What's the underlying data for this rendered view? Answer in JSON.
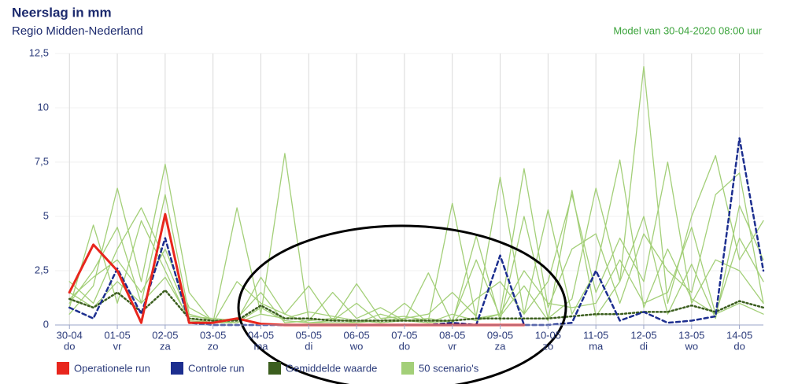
{
  "chart_data": {
    "type": "line",
    "title": "Neerslag in mm",
    "subtitle": "Regio Midden-Nederland",
    "model_note": "Model van 30-04-2020 08:00 uur",
    "x": [
      0,
      0.5,
      1,
      1.5,
      2,
      2.5,
      3,
      3.5,
      4,
      4.5,
      5,
      5.5,
      6,
      6.5,
      7,
      7.5,
      8,
      8.5,
      9,
      9.5,
      10,
      10.5,
      11,
      11.5,
      12,
      12.5,
      13,
      13.5,
      14,
      14.5
    ],
    "xlim": [
      -0.3,
      14.5
    ],
    "xticks": [
      {
        "value": 0,
        "label": "30-04",
        "day": "do"
      },
      {
        "value": 1,
        "label": "01-05",
        "day": "vr"
      },
      {
        "value": 2,
        "label": "02-05",
        "day": "za"
      },
      {
        "value": 3,
        "label": "03-05",
        "day": "zo"
      },
      {
        "value": 4,
        "label": "04-05",
        "day": "ma"
      },
      {
        "value": 5,
        "label": "05-05",
        "day": "di"
      },
      {
        "value": 6,
        "label": "06-05",
        "day": "wo"
      },
      {
        "value": 7,
        "label": "07-05",
        "day": "do"
      },
      {
        "value": 8,
        "label": "08-05",
        "day": "vr"
      },
      {
        "value": 9,
        "label": "09-05",
        "day": "za"
      },
      {
        "value": 10,
        "label": "10-05",
        "day": "zo"
      },
      {
        "value": 11,
        "label": "11-05",
        "day": "ma"
      },
      {
        "value": 12,
        "label": "12-05",
        "day": "di"
      },
      {
        "value": 13,
        "label": "13-05",
        "day": "wo"
      },
      {
        "value": 14,
        "label": "14-05",
        "day": "do"
      }
    ],
    "ylim": [
      0,
      12.5
    ],
    "yticks": [
      0,
      {
        "value": 2.5,
        "label": "2,5"
      },
      5,
      {
        "value": 7.5,
        "label": "7,5"
      },
      10,
      {
        "value": 12.5,
        "label": "12,5"
      }
    ],
    "grid": true,
    "series": [
      {
        "name": "Operationele run",
        "color": "#e8261d",
        "style": "solid",
        "values": [
          1.5,
          3.7,
          2.5,
          0.1,
          5.1,
          0.1,
          0.1,
          0.3,
          0.05,
          0,
          0,
          0,
          0,
          0,
          0,
          0,
          0,
          0,
          0,
          0,
          null,
          null,
          null,
          null,
          null,
          null,
          null,
          null,
          null,
          null
        ]
      },
      {
        "name": "Controle run",
        "color": "#1c2e8f",
        "style": "dashed",
        "values": [
          0.8,
          0.3,
          2.6,
          0.5,
          4.0,
          0.1,
          0,
          0,
          0,
          0,
          0,
          0,
          0,
          0,
          0,
          0,
          0.1,
          0,
          3.2,
          0,
          0,
          0.1,
          2.5,
          0.2,
          0.6,
          0.1,
          0.2,
          0.4,
          8.6,
          2.5
        ]
      },
      {
        "name": "Gemiddelde waarde",
        "color": "#3b5e1e",
        "style": "dotted",
        "values": [
          1.2,
          0.8,
          1.5,
          0.6,
          1.6,
          0.3,
          0.2,
          0.2,
          0.9,
          0.3,
          0.3,
          0.2,
          0.2,
          0.2,
          0.2,
          0.2,
          0.2,
          0.3,
          0.3,
          0.3,
          0.3,
          0.4,
          0.5,
          0.5,
          0.6,
          0.6,
          0.9,
          0.6,
          1.1,
          0.8
        ]
      },
      {
        "name": "50 scenario's",
        "color": "#a3cf78",
        "style": "solid",
        "members": [
          [
            1.0,
            2.5,
            4.5,
            1.0,
            6.0,
            0.5,
            0.2,
            0.1,
            0.8,
            0.2,
            0.1,
            0.1,
            0.1,
            0.2,
            0.3,
            0.5,
            1.5,
            0.4,
            6.8,
            0.5,
            2.0,
            6.0,
            1.5,
            4.0,
            2.0,
            7.5,
            1.0,
            3.0,
            2.5,
            1.0
          ],
          [
            0.5,
            1.8,
            6.3,
            2.0,
            7.4,
            1.5,
            0.1,
            5.4,
            0.5,
            7.9,
            0.2,
            1.5,
            0.3,
            0.8,
            0.2,
            2.4,
            0.1,
            4.1,
            0.2,
            5.0,
            0.3,
            1.2,
            6.3,
            2.0,
            11.9,
            1.0,
            5.0,
            7.8,
            3.0,
            4.8
          ],
          [
            2.0,
            1.0,
            3.5,
            5.4,
            3.0,
            0.4,
            0.3,
            0.2,
            2.2,
            0.5,
            1.8,
            0.2,
            1.9,
            0.3,
            0.4,
            0.2,
            5.6,
            0.3,
            0.5,
            7.2,
            0.8,
            3.5,
            4.2,
            1.0,
            4.2,
            2.5,
            1.5,
            6.0,
            7.0,
            1.0
          ],
          [
            1.2,
            2.2,
            3.0,
            1.5,
            3.5,
            0.8,
            0.2,
            0.3,
            1.5,
            0.1,
            0.2,
            0.3,
            0.1,
            0.5,
            0.2,
            0.3,
            0.1,
            1.2,
            2.0,
            0.5,
            5.3,
            0.5,
            2.5,
            7.6,
            0.8,
            3.5,
            1.2,
            0.5,
            4.0,
            2.0
          ],
          [
            0.8,
            4.6,
            1.0,
            4.8,
            2.5,
            0.2,
            0.1,
            0.1,
            0.5,
            0.3,
            0.6,
            0.4,
            0.2,
            0.1,
            1.0,
            0.1,
            0.2,
            3.0,
            0.4,
            1.8,
            0.2,
            6.2,
            0.4,
            2.0,
            5.0,
            0.5,
            2.8,
            0.3,
            5.5,
            3.0
          ],
          [
            1.5,
            0.8,
            2.0,
            1.0,
            2.2,
            0.3,
            0.1,
            2.0,
            1.0,
            0.5,
            0.1,
            0.2,
            1.0,
            0.1,
            0.2,
            0.1,
            0.5,
            0.2,
            0.5,
            2.5,
            1.0,
            0.8,
            1.0,
            3.0,
            1.0,
            1.5,
            4.5,
            0.5,
            1.0,
            0.5
          ]
        ]
      }
    ]
  }
}
